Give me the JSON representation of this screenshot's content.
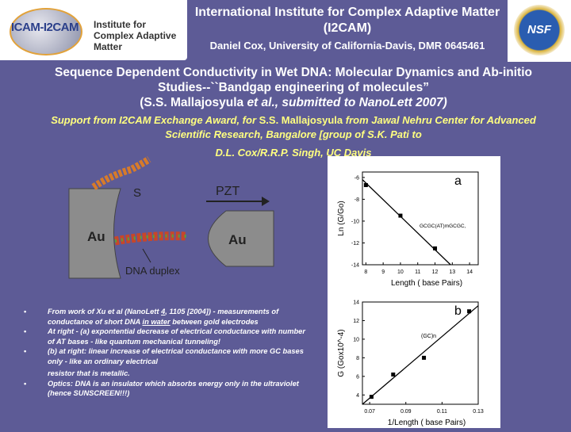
{
  "header": {
    "logo_text": "ICAM-I2CAM",
    "logo_subtext": "Institute for Complex Adaptive Matter",
    "logo_name": "Institute for Complex Adaptive Matter",
    "title": "International Institute for Complex Adaptive Matter (I2CAM)",
    "subtitle": "Daniel Cox, University of California-Davis, DMR 0645461",
    "nsf_logo": "NSF"
  },
  "title": {
    "line1": "Sequence Dependent Conductivity in Wet DNA: Molecular Dynamics and Ab-initio Studies--``Bandgap engineering of molecules”",
    "line3a": "(S.S. Mallajosyula ",
    "line3b": "et al., submitted to NanoLett 2007)"
  },
  "support": {
    "a": "Support from I2CAM Exchange Award, for ",
    "b": "S.S. Mallajosyula",
    "c": " from Jawal Nehru Center for Advanced Scientific Research, Bangalore [group of S.K. Pati to",
    "d": "D.L. Cox/R.R.P. Singh, UC Davis"
  },
  "diagram": {
    "left_electrode": "Au",
    "right_electrode": "Au",
    "pzt": "PZT",
    "s_label": "S",
    "dna_label": "DNA duplex"
  },
  "bullets": {
    "b1a": "From work of Xu et al (NanoLett ",
    "b1num": "4",
    "b1b": ", 1105 [2004]) - measurements of conductance of short DNA ",
    "b1u": "in water",
    "b1c": " between gold electrodes",
    "b2": "At right - (a) expontential decrease of electrical conductance with number of AT bases - like quantum mechanical tunneling!",
    "b3": "(b) at right:  linear increase of electrical conductance with more GC bases only - like an ordinary electrical",
    "b3cont": "resistor that is metallic.",
    "b4": "Optics:  DNA is an insulator which absorbs energy only in the ultraviolet (hence SUNSCREEN!!!)"
  },
  "chart_data": [
    {
      "type": "scatter",
      "panel_label": "a",
      "xlabel": "Length ( base Pairs)",
      "ylabel": "Ln (G/Go)",
      "xlim": [
        7.8,
        14.5
      ],
      "ylim": [
        -14,
        -5.5
      ],
      "xticks": [
        8,
        9,
        10,
        11,
        12,
        13,
        14
      ],
      "yticks": [
        -6,
        -8,
        -10,
        -12,
        -14
      ],
      "annotation": "GCGC(AT)mGCGC,",
      "points": [
        [
          8,
          -6.7
        ],
        [
          10,
          -9.5
        ],
        [
          12,
          -12.5
        ]
      ],
      "fit_line": [
        [
          7.8,
          -6.2
        ],
        [
          12.9,
          -14
        ]
      ]
    },
    {
      "type": "scatter",
      "panel_label": "b",
      "xlabel": "1/Length ( base Pairs)",
      "ylabel": "G (Gox10^-4)",
      "xlim": [
        0.066,
        0.13
      ],
      "ylim": [
        3,
        14
      ],
      "xticks": [
        0.07,
        0.09,
        0.11,
        0.13
      ],
      "yticks": [
        4,
        6,
        8,
        10,
        12,
        14
      ],
      "annotation": "(GC)n",
      "points": [
        [
          0.071,
          3.8
        ],
        [
          0.083,
          6.2
        ],
        [
          0.1,
          8
        ],
        [
          0.125,
          13
        ]
      ],
      "fit_line": [
        [
          0.066,
          3
        ],
        [
          0.13,
          13.6
        ]
      ]
    }
  ]
}
